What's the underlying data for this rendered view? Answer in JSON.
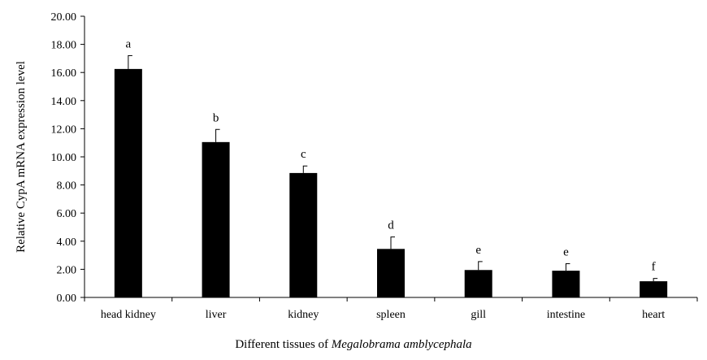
{
  "chart_data": {
    "type": "bar",
    "title": "",
    "ylabel": "Relative  CypA mRNA expression level",
    "xlabel_parts": [
      {
        "text": "Different tissues of ",
        "italic": false
      },
      {
        "text": "Megalobrama amblycephala",
        "italic": true
      }
    ],
    "ylim": [
      0,
      20
    ],
    "yticks": [
      "0.00",
      "2.00",
      "4.00",
      "6.00",
      "8.00",
      "10.00",
      "12.00",
      "14.00",
      "16.00",
      "18.00",
      "20.00"
    ],
    "categories": [
      "head kidney",
      "liver",
      "kidney",
      "spleen",
      "gill",
      "intestine",
      "heart"
    ],
    "values": [
      16.25,
      11.05,
      8.85,
      3.45,
      1.95,
      1.9,
      1.15
    ],
    "errors": [
      0.95,
      0.9,
      0.5,
      0.85,
      0.6,
      0.5,
      0.2
    ],
    "significance": [
      "a",
      "b",
      "c",
      "d",
      "e",
      "e",
      "f"
    ],
    "bar_color": "#000000",
    "grid": false,
    "legend": "none"
  }
}
